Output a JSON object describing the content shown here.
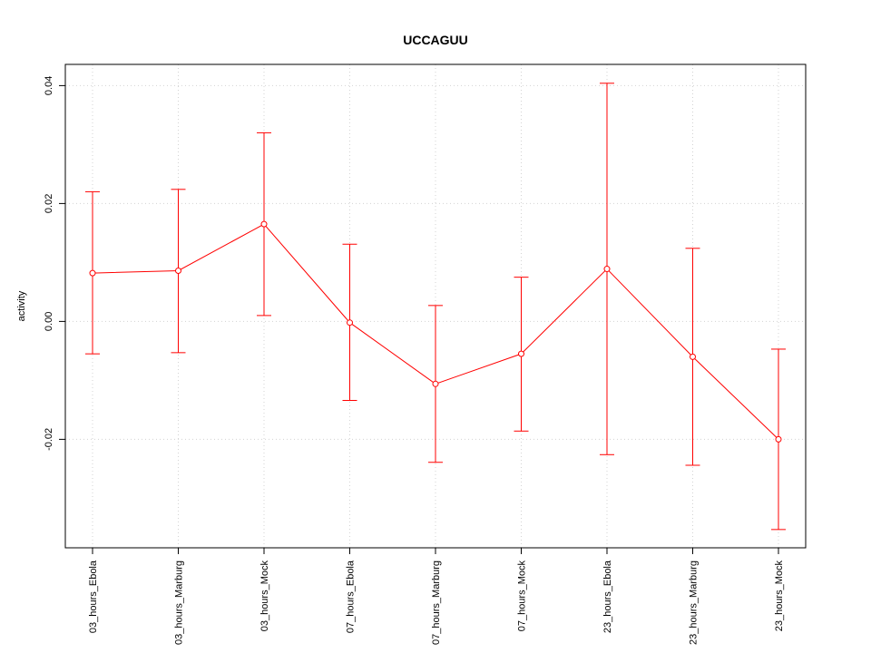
{
  "chart_data": {
    "type": "line",
    "title": "UCCAGUU",
    "xlabel": "",
    "ylabel": "activity",
    "categories": [
      "03_hours_Ebola",
      "03_hours_Marburg",
      "03_hours_Mock",
      "07_hours_Ebola",
      "07_hours_Marburg",
      "07_hours_Mock",
      "23_hours_Ebola",
      "23_hours_Marburg",
      "23_hours_Mock"
    ],
    "series": [
      {
        "values": [
          0.0082,
          0.0086,
          0.0165,
          -0.0002,
          -0.0106,
          -0.0055,
          0.0089,
          -0.006,
          -0.02
        ],
        "upper": [
          0.022,
          0.0224,
          0.032,
          0.0131,
          0.0027,
          0.0075,
          0.0404,
          0.0124,
          -0.0047
        ],
        "lower": [
          -0.0055,
          -0.0053,
          0.001,
          -0.0134,
          -0.0239,
          -0.0186,
          -0.0226,
          -0.0244,
          -0.0353
        ],
        "color": "#ff0000"
      }
    ],
    "yticks": [
      -0.02,
      0.0,
      0.02,
      0.04
    ],
    "ytick_labels": [
      "-0.02",
      "0.00",
      "0.02",
      "0.04"
    ],
    "ylim": [
      -0.0384,
      0.0436
    ],
    "grid": true,
    "grid_color": "#d3d3d3"
  }
}
